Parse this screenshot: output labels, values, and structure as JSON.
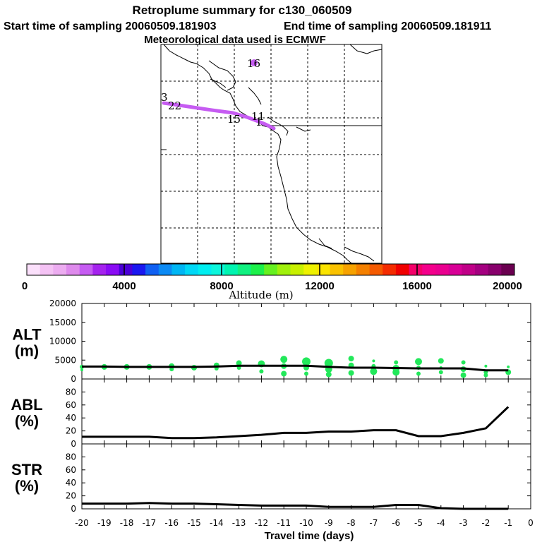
{
  "header": {
    "title": "Retroplume summary for c130_060509",
    "start_label": "Start time of sampling 20060509.181903",
    "end_label": "End time of sampling 20060509.181911",
    "met_label": "Meteorological data used is ECMWF"
  },
  "map": {
    "point_labels": [
      "16",
      "3",
      "22",
      "15",
      "11",
      "1"
    ],
    "plume_color": "#c65cf2"
  },
  "colorbar": {
    "title": "Altitude (m)",
    "tick_labels": [
      "0",
      "4000",
      "8000",
      "12000",
      "16000",
      "20000"
    ],
    "colors": [
      "#fbe0fb",
      "#f4c2f4",
      "#ecacf0",
      "#de8aec",
      "#c65cf2",
      "#a523ee",
      "#8a0cf4",
      "#4b00d8",
      "#1a18f0",
      "#1060f2",
      "#0c8af4",
      "#00b6f4",
      "#00d8f6",
      "#00eef0",
      "#0cf6dc",
      "#00f4b0",
      "#10f080",
      "#1cf04a",
      "#66f020",
      "#a0f00c",
      "#c8f000",
      "#eef200",
      "#fae400",
      "#fac200",
      "#f6a200",
      "#f48000",
      "#f45a00",
      "#f42c00",
      "#f00000",
      "#f4006a",
      "#f4008c",
      "#ea0090",
      "#d80096",
      "#c00088",
      "#a40080",
      "#88006c",
      "#6a0050"
    ]
  },
  "chart_data": [
    {
      "type": "scatter",
      "name": "ALT",
      "ylabel_line1": "ALT",
      "ylabel_line2": "(m)",
      "ylim": [
        0,
        20000
      ],
      "yticks": [
        "20000",
        "15000",
        "10000",
        "5000",
        "0"
      ],
      "point_color": "#22e85a",
      "line_x": [
        -20,
        -19,
        -18,
        -17,
        -16,
        -15,
        -14,
        -13,
        -12,
        -11,
        -10,
        -9,
        -8,
        -7,
        -6,
        -5,
        -4,
        -3,
        -2,
        -1
      ],
      "line_y": [
        3300,
        3300,
        3200,
        3200,
        3200,
        3200,
        3300,
        3500,
        3500,
        3500,
        3500,
        3200,
        3000,
        3000,
        2900,
        2800,
        2800,
        2800,
        2300,
        2300
      ],
      "points": [
        {
          "x": -20,
          "y": 3200,
          "r": 3
        },
        {
          "x": -20,
          "y": 2400,
          "r": 2
        },
        {
          "x": -19,
          "y": 3200,
          "r": 4
        },
        {
          "x": -18,
          "y": 3200,
          "r": 4
        },
        {
          "x": -17,
          "y": 3200,
          "r": 4
        },
        {
          "x": -16,
          "y": 3400,
          "r": 4
        },
        {
          "x": -16,
          "y": 2600,
          "r": 3
        },
        {
          "x": -15,
          "y": 3000,
          "r": 4
        },
        {
          "x": -14,
          "y": 3600,
          "r": 4
        },
        {
          "x": -14,
          "y": 2800,
          "r": 3
        },
        {
          "x": -13,
          "y": 4200,
          "r": 4
        },
        {
          "x": -13,
          "y": 3000,
          "r": 3
        },
        {
          "x": -12,
          "y": 4000,
          "r": 5
        },
        {
          "x": -12,
          "y": 2000,
          "r": 3
        },
        {
          "x": -11,
          "y": 5200,
          "r": 5
        },
        {
          "x": -11,
          "y": 3400,
          "r": 4
        },
        {
          "x": -11,
          "y": 1400,
          "r": 4
        },
        {
          "x": -10,
          "y": 4600,
          "r": 6
        },
        {
          "x": -10,
          "y": 3000,
          "r": 4
        },
        {
          "x": -10,
          "y": 1400,
          "r": 3
        },
        {
          "x": -9,
          "y": 4200,
          "r": 6
        },
        {
          "x": -9,
          "y": 2600,
          "r": 5
        },
        {
          "x": -9,
          "y": 1200,
          "r": 4
        },
        {
          "x": -8,
          "y": 5400,
          "r": 4
        },
        {
          "x": -8,
          "y": 3600,
          "r": 4
        },
        {
          "x": -8,
          "y": 1600,
          "r": 4
        },
        {
          "x": -7,
          "y": 4800,
          "r": 2
        },
        {
          "x": -7,
          "y": 3400,
          "r": 3
        },
        {
          "x": -7,
          "y": 2000,
          "r": 5
        },
        {
          "x": -6,
          "y": 4400,
          "r": 3
        },
        {
          "x": -6,
          "y": 2800,
          "r": 5
        },
        {
          "x": -6,
          "y": 1800,
          "r": 5
        },
        {
          "x": -5,
          "y": 4600,
          "r": 5
        },
        {
          "x": -5,
          "y": 3000,
          "r": 3
        },
        {
          "x": -5,
          "y": 1400,
          "r": 3
        },
        {
          "x": -4,
          "y": 4800,
          "r": 4
        },
        {
          "x": -4,
          "y": 3000,
          "r": 2
        },
        {
          "x": -4,
          "y": 1800,
          "r": 3
        },
        {
          "x": -3,
          "y": 4400,
          "r": 3
        },
        {
          "x": -3,
          "y": 2600,
          "r": 4
        },
        {
          "x": -3,
          "y": 1000,
          "r": 4
        },
        {
          "x": -2,
          "y": 3400,
          "r": 2
        },
        {
          "x": -2,
          "y": 1800,
          "r": 3
        },
        {
          "x": -2,
          "y": 1000,
          "r": 3
        },
        {
          "x": -1,
          "y": 3200,
          "r": 2
        },
        {
          "x": -1,
          "y": 1800,
          "r": 4
        }
      ]
    },
    {
      "type": "line",
      "name": "ABL",
      "ylabel_line1": "ABL",
      "ylabel_line2": "(%)",
      "ylim": [
        0,
        100
      ],
      "yticks": [
        "80",
        "60",
        "40",
        "20",
        "0"
      ],
      "x": [
        -20,
        -19,
        -18,
        -17,
        -16,
        -15,
        -14,
        -13,
        -12,
        -11,
        -10,
        -9,
        -8,
        -7,
        -6,
        -5,
        -4,
        -3,
        -2,
        -1
      ],
      "y": [
        11,
        11,
        11,
        11,
        9,
        9,
        10,
        12,
        14,
        17,
        17,
        19,
        19,
        21,
        21,
        12,
        12,
        17,
        24,
        57
      ]
    },
    {
      "type": "line",
      "name": "STR",
      "ylabel_line1": "STR",
      "ylabel_line2": "(%)",
      "ylim": [
        0,
        100
      ],
      "yticks": [
        "80",
        "60",
        "40",
        "20",
        "0"
      ],
      "x": [
        -20,
        -19,
        -18,
        -17,
        -16,
        -15,
        -14,
        -13,
        -12,
        -11,
        -10,
        -9,
        -8,
        -7,
        -6,
        -5,
        -4,
        -3,
        -2,
        -1
      ],
      "y": [
        8,
        8,
        8,
        9,
        8,
        8,
        7,
        6,
        5,
        5,
        5,
        3,
        3,
        3,
        6,
        6,
        1,
        0,
        0,
        0
      ]
    }
  ],
  "xaxis": {
    "title": "Travel time (days)",
    "tick_labels": [
      "-20",
      "-19",
      "-18",
      "-17",
      "-16",
      "-15",
      "-14",
      "-13",
      "-12",
      "-11",
      "-10",
      "-9",
      "-8",
      "-7",
      "-6",
      "-5",
      "-4",
      "-3",
      "-2",
      "-1",
      "0"
    ]
  }
}
